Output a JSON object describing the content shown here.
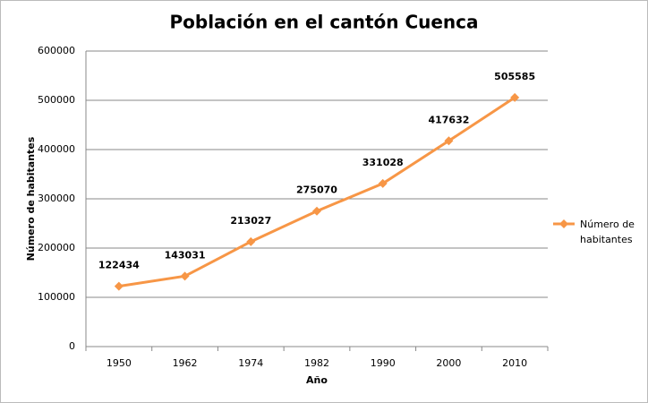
{
  "chart_data": {
    "type": "line",
    "title": "Población en el cantón Cuenca",
    "x_label": "Año",
    "y_label": "Número de habitantes",
    "categories": [
      "1950",
      "1962",
      "1974",
      "1982",
      "1990",
      "2000",
      "2010"
    ],
    "series": [
      {
        "name": "Número de habitantes",
        "color": "#f79646",
        "values": [
          122434,
          143031,
          213027,
          275070,
          331028,
          417632,
          505585
        ]
      }
    ],
    "ylim": [
      0,
      600000
    ],
    "yticks": [
      0,
      100000,
      200000,
      300000,
      400000,
      500000,
      600000
    ],
    "grid": true,
    "legend": "right",
    "data_labels": true
  }
}
